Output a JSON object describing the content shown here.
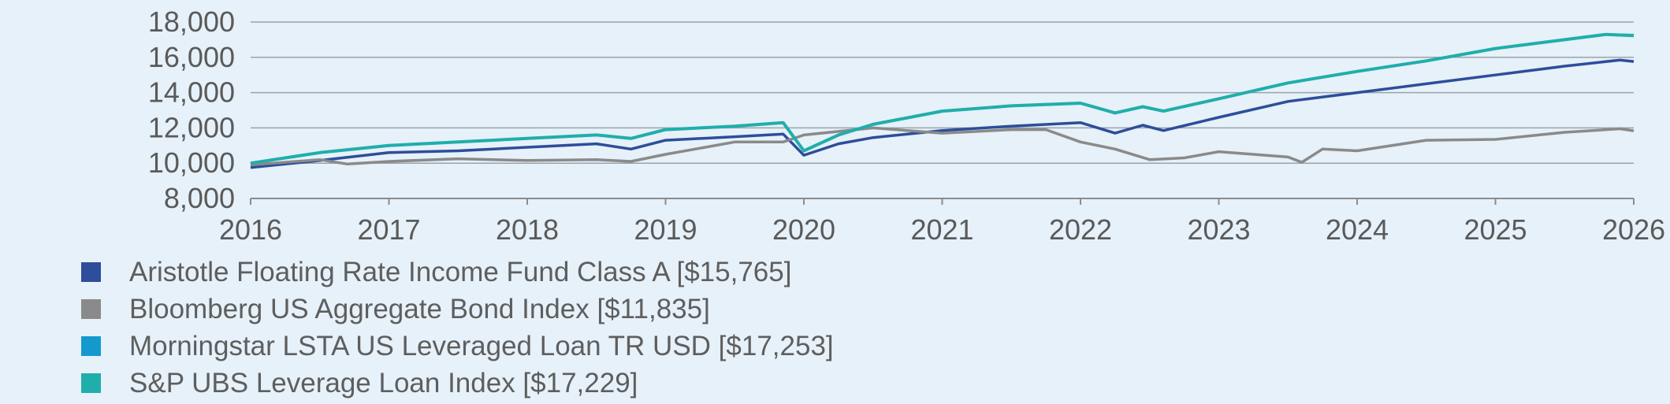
{
  "chart_data": {
    "type": "line",
    "title": "",
    "xlabel": "",
    "ylabel": "",
    "xlim": [
      2016,
      2026
    ],
    "ylim": [
      8000,
      18000
    ],
    "x_ticks": [
      "2016",
      "2017",
      "2018",
      "2019",
      "2020",
      "2021",
      "2022",
      "2023",
      "2024",
      "2025",
      "2026"
    ],
    "y_ticks": [
      "8,000",
      "10,000",
      "12,000",
      "14,000",
      "16,000",
      "18,000"
    ],
    "grid": "horizontal",
    "legend_position": "bottom",
    "series": [
      {
        "name": "Aristotle Floating Rate Income Fund Class A [$15,765]",
        "color": "#2e4d9a",
        "points": [
          [
            2016.0,
            9750
          ],
          [
            2016.5,
            10150
          ],
          [
            2017.0,
            10600
          ],
          [
            2017.5,
            10700
          ],
          [
            2018.0,
            10900
          ],
          [
            2018.5,
            11100
          ],
          [
            2018.75,
            10800
          ],
          [
            2019.0,
            11300
          ],
          [
            2019.5,
            11500
          ],
          [
            2019.85,
            11650
          ],
          [
            2020.0,
            10450
          ],
          [
            2020.25,
            11100
          ],
          [
            2020.5,
            11450
          ],
          [
            2021.0,
            11850
          ],
          [
            2021.5,
            12100
          ],
          [
            2022.0,
            12300
          ],
          [
            2022.25,
            11700
          ],
          [
            2022.45,
            12150
          ],
          [
            2022.6,
            11850
          ],
          [
            2023.0,
            12600
          ],
          [
            2023.5,
            13500
          ],
          [
            2024.0,
            14000
          ],
          [
            2024.5,
            14500
          ],
          [
            2025.0,
            15000
          ],
          [
            2025.5,
            15500
          ],
          [
            2025.9,
            15850
          ],
          [
            2026.0,
            15765
          ]
        ]
      },
      {
        "name": "Bloomberg US Aggregate Bond Index [$11,835]",
        "color": "#8a8a8a",
        "points": [
          [
            2016.0,
            9900
          ],
          [
            2016.5,
            10200
          ],
          [
            2016.7,
            9950
          ],
          [
            2017.0,
            10100
          ],
          [
            2017.5,
            10250
          ],
          [
            2018.0,
            10150
          ],
          [
            2018.5,
            10200
          ],
          [
            2018.75,
            10100
          ],
          [
            2019.0,
            10500
          ],
          [
            2019.5,
            11200
          ],
          [
            2019.85,
            11200
          ],
          [
            2020.0,
            11600
          ],
          [
            2020.5,
            12000
          ],
          [
            2021.0,
            11700
          ],
          [
            2021.5,
            11900
          ],
          [
            2021.75,
            11900
          ],
          [
            2022.0,
            11200
          ],
          [
            2022.25,
            10800
          ],
          [
            2022.5,
            10200
          ],
          [
            2022.75,
            10300
          ],
          [
            2023.0,
            10650
          ],
          [
            2023.5,
            10350
          ],
          [
            2023.6,
            10050
          ],
          [
            2023.75,
            10800
          ],
          [
            2024.0,
            10700
          ],
          [
            2024.5,
            11300
          ],
          [
            2025.0,
            11350
          ],
          [
            2025.5,
            11750
          ],
          [
            2025.9,
            11950
          ],
          [
            2026.0,
            11835
          ]
        ]
      },
      {
        "name": "Morningstar LSTA US Leveraged Loan TR USD [$17,253]",
        "color": "#1499cf",
        "points": [
          [
            2016.0,
            10000
          ],
          [
            2016.5,
            10600
          ],
          [
            2017.0,
            11000
          ],
          [
            2017.5,
            11200
          ],
          [
            2018.0,
            11400
          ],
          [
            2018.5,
            11600
          ],
          [
            2018.75,
            11400
          ],
          [
            2019.0,
            11900
          ],
          [
            2019.5,
            12100
          ],
          [
            2019.85,
            12300
          ],
          [
            2020.0,
            10700
          ],
          [
            2020.25,
            11600
          ],
          [
            2020.5,
            12200
          ],
          [
            2021.0,
            12950
          ],
          [
            2021.5,
            13250
          ],
          [
            2022.0,
            13400
          ],
          [
            2022.25,
            12850
          ],
          [
            2022.45,
            13200
          ],
          [
            2022.6,
            12950
          ],
          [
            2023.0,
            13650
          ],
          [
            2023.5,
            14550
          ],
          [
            2024.0,
            15200
          ],
          [
            2024.5,
            15800
          ],
          [
            2025.0,
            16500
          ],
          [
            2025.5,
            17000
          ],
          [
            2025.8,
            17300
          ],
          [
            2026.0,
            17253
          ]
        ]
      },
      {
        "name": "S&P UBS Leverage Loan Index [$17,229]",
        "color": "#20aeab",
        "points": [
          [
            2016.0,
            10000
          ],
          [
            2016.5,
            10600
          ],
          [
            2017.0,
            11000
          ],
          [
            2017.5,
            11200
          ],
          [
            2018.0,
            11400
          ],
          [
            2018.5,
            11600
          ],
          [
            2018.75,
            11400
          ],
          [
            2019.0,
            11900
          ],
          [
            2019.5,
            12100
          ],
          [
            2019.85,
            12300
          ],
          [
            2020.0,
            10700
          ],
          [
            2020.25,
            11600
          ],
          [
            2020.5,
            12200
          ],
          [
            2021.0,
            12950
          ],
          [
            2021.5,
            13250
          ],
          [
            2022.0,
            13400
          ],
          [
            2022.25,
            12850
          ],
          [
            2022.45,
            13200
          ],
          [
            2022.6,
            12950
          ],
          [
            2023.0,
            13650
          ],
          [
            2023.5,
            14550
          ],
          [
            2024.0,
            15200
          ],
          [
            2024.5,
            15800
          ],
          [
            2025.0,
            16500
          ],
          [
            2025.5,
            17000
          ],
          [
            2025.8,
            17300
          ],
          [
            2026.0,
            17229
          ]
        ]
      }
    ]
  }
}
